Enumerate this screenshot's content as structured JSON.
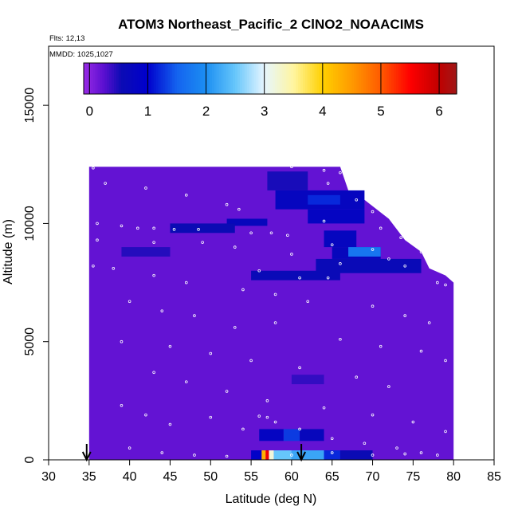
{
  "chart_data": {
    "type": "heatmap",
    "title": "ATOM3 Northeast_Pacific_2 ClNO2_NOAACIMS",
    "flights_label": "Flts: 12,13",
    "dates_label": "MMDD: 1025,1027",
    "xlabel": "Latitude (deg N)",
    "ylabel": "Altitude (m)",
    "xlim": [
      30,
      85
    ],
    "ylim": [
      0,
      17500
    ],
    "xticks": [
      30,
      35,
      40,
      45,
      50,
      55,
      60,
      65,
      70,
      75,
      80,
      85
    ],
    "yticks": [
      0,
      5000,
      10000,
      15000
    ],
    "colorbar": {
      "range": [
        -0.1,
        6.3
      ],
      "ticks": [
        0,
        1,
        2,
        3,
        4,
        5,
        6
      ],
      "stops": [
        {
          "v": -0.1,
          "c": "#9a2be6"
        },
        {
          "v": 0.25,
          "c": "#5a0fd0"
        },
        {
          "v": 0.55,
          "c": "#0b0bb4"
        },
        {
          "v": 1.0,
          "c": "#0000cd"
        },
        {
          "v": 1.5,
          "c": "#1463ef"
        },
        {
          "v": 2.0,
          "c": "#1c8ff2"
        },
        {
          "v": 2.5,
          "c": "#66c6fb"
        },
        {
          "v": 3.0,
          "c": "#e6f6ff"
        },
        {
          "v": 3.5,
          "c": "#fff5a0"
        },
        {
          "v": 4.0,
          "c": "#ffd000"
        },
        {
          "v": 4.5,
          "c": "#ff9a00"
        },
        {
          "v": 5.0,
          "c": "#ff5a00"
        },
        {
          "v": 5.5,
          "c": "#ff0000"
        },
        {
          "v": 6.0,
          "c": "#c00000"
        },
        {
          "v": 6.3,
          "c": "#a01818"
        }
      ]
    },
    "base_value": 0.2,
    "upper_envelope": [
      [
        35,
        12400
      ],
      [
        66,
        12400
      ],
      [
        67,
        11400
      ],
      [
        69,
        11000
      ],
      [
        72,
        10200
      ],
      [
        74,
        9300
      ],
      [
        76,
        8800
      ],
      [
        77,
        8100
      ],
      [
        79,
        7800
      ],
      [
        80,
        7500
      ],
      [
        80,
        0
      ]
    ],
    "enhancements": [
      {
        "lat": [
          52,
          57
        ],
        "alt": [
          9900,
          10200
        ],
        "v": 0.7
      },
      {
        "lat": [
          45,
          53
        ],
        "alt": [
          9600,
          10000
        ],
        "v": 0.55
      },
      {
        "lat": [
          57,
          62
        ],
        "alt": [
          11400,
          12200
        ],
        "v": 0.5
      },
      {
        "lat": [
          58,
          69
        ],
        "alt": [
          10600,
          11400
        ],
        "v": 0.75
      },
      {
        "lat": [
          62,
          66
        ],
        "alt": [
          10800,
          11200
        ],
        "v": 1.2
      },
      {
        "lat": [
          62,
          69
        ],
        "alt": [
          10000,
          10600
        ],
        "v": 0.8
      },
      {
        "lat": [
          64,
          68
        ],
        "alt": [
          9000,
          9700
        ],
        "v": 0.75
      },
      {
        "lat": [
          65,
          71
        ],
        "alt": [
          8500,
          9000
        ],
        "v": 0.7
      },
      {
        "lat": [
          67,
          71
        ],
        "alt": [
          8600,
          9000
        ],
        "v": 1.7
      },
      {
        "lat": [
          63,
          76
        ],
        "alt": [
          7900,
          8500
        ],
        "v": 0.6
      },
      {
        "lat": [
          55,
          66
        ],
        "alt": [
          7600,
          8000
        ],
        "v": 0.6
      },
      {
        "lat": [
          39,
          45
        ],
        "alt": [
          8600,
          9000
        ],
        "v": 0.45
      },
      {
        "lat": [
          60,
          64
        ],
        "alt": [
          3200,
          3600
        ],
        "v": 0.4
      },
      {
        "lat": [
          59,
          61
        ],
        "alt": [
          800,
          1300
        ],
        "v": 1.3
      },
      {
        "lat": [
          56,
          59
        ],
        "alt": [
          800,
          1300
        ],
        "v": 0.8
      },
      {
        "lat": [
          61,
          64
        ],
        "alt": [
          800,
          1300
        ],
        "v": 0.7
      },
      {
        "lat": [
          55,
          56.3
        ],
        "alt": [
          0,
          400
        ],
        "v": 0.9
      },
      {
        "lat": [
          56.3,
          56.8
        ],
        "alt": [
          0,
          400
        ],
        "v": 4.3
      },
      {
        "lat": [
          56.8,
          57.2
        ],
        "alt": [
          0,
          400
        ],
        "v": 5.6
      },
      {
        "lat": [
          57.2,
          57.8
        ],
        "alt": [
          0,
          400
        ],
        "v": 3.2
      },
      {
        "lat": [
          57.8,
          60
        ],
        "alt": [
          0,
          400
        ],
        "v": 2.5
      },
      {
        "lat": [
          60,
          64
        ],
        "alt": [
          0,
          400
        ],
        "v": 2.2
      },
      {
        "lat": [
          64,
          66
        ],
        "alt": [
          0,
          400
        ],
        "v": 1.2
      },
      {
        "lat": [
          66,
          70
        ],
        "alt": [
          0,
          400
        ],
        "v": 0.55
      }
    ],
    "flight_track_points": [
      [
        35.5,
        12350
      ],
      [
        37,
        11700
      ],
      [
        42,
        11500
      ],
      [
        47,
        11200
      ],
      [
        52,
        10800
      ],
      [
        53.5,
        10600
      ],
      [
        60,
        12400
      ],
      [
        64,
        12250
      ],
      [
        66,
        12150
      ],
      [
        64.5,
        11700
      ],
      [
        67.5,
        11600
      ],
      [
        68,
        11000
      ],
      [
        70,
        10500
      ],
      [
        72,
        10300
      ],
      [
        73,
        10200
      ],
      [
        75,
        10000
      ],
      [
        64,
        10100
      ],
      [
        71,
        9800
      ],
      [
        73.5,
        9400
      ],
      [
        76,
        8800
      ],
      [
        36,
        10000
      ],
      [
        39,
        9900
      ],
      [
        41,
        9800
      ],
      [
        43,
        9800
      ],
      [
        45.5,
        9750
      ],
      [
        48.5,
        9750
      ],
      [
        55,
        9600
      ],
      [
        57.5,
        9600
      ],
      [
        59.5,
        9500
      ],
      [
        65,
        9100
      ],
      [
        70,
        8900
      ],
      [
        72,
        8500
      ],
      [
        74,
        8200
      ],
      [
        56,
        8000
      ],
      [
        61,
        7700
      ],
      [
        64.5,
        7700
      ],
      [
        66,
        8300
      ],
      [
        78,
        7500
      ],
      [
        79,
        7400
      ],
      [
        36,
        9300
      ],
      [
        43,
        9200
      ],
      [
        49,
        9200
      ],
      [
        53,
        9000
      ],
      [
        60,
        8700
      ],
      [
        35.5,
        8200
      ],
      [
        38,
        8100
      ],
      [
        43,
        7800
      ],
      [
        47,
        7500
      ],
      [
        54,
        7200
      ],
      [
        58,
        7000
      ],
      [
        62,
        6700
      ],
      [
        70,
        6500
      ],
      [
        74,
        6100
      ],
      [
        77,
        5800
      ],
      [
        40,
        6700
      ],
      [
        44,
        6300
      ],
      [
        48,
        6100
      ],
      [
        53,
        5600
      ],
      [
        58,
        5800
      ],
      [
        66,
        5100
      ],
      [
        71,
        4800
      ],
      [
        76,
        4600
      ],
      [
        79,
        4200
      ],
      [
        39,
        5000
      ],
      [
        45,
        4800
      ],
      [
        50,
        4500
      ],
      [
        55,
        4200
      ],
      [
        61,
        3900
      ],
      [
        68,
        3500
      ],
      [
        72,
        3100
      ],
      [
        43,
        3700
      ],
      [
        47,
        3300
      ],
      [
        52,
        2900
      ],
      [
        57,
        2500
      ],
      [
        64,
        2200
      ],
      [
        70,
        1900
      ],
      [
        75,
        1600
      ],
      [
        79,
        1200
      ],
      [
        39,
        2300
      ],
      [
        42,
        1900
      ],
      [
        45,
        1500
      ],
      [
        50,
        1800
      ],
      [
        54,
        1300
      ],
      [
        58,
        1600
      ],
      [
        56,
        1850
      ],
      [
        57,
        1800
      ],
      [
        61,
        1300
      ],
      [
        65,
        900
      ],
      [
        69,
        700
      ],
      [
        73,
        500
      ],
      [
        76,
        300
      ],
      [
        78,
        200
      ],
      [
        40,
        500
      ],
      [
        44,
        300
      ],
      [
        48,
        200
      ],
      [
        52,
        150
      ],
      [
        60,
        200
      ],
      [
        65,
        300
      ],
      [
        70,
        200
      ],
      [
        74,
        250
      ]
    ],
    "arrows_lat": [
      34.7,
      61.2
    ]
  }
}
